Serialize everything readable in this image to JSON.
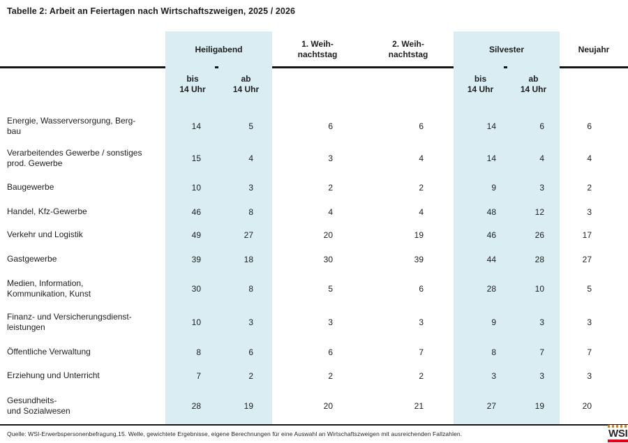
{
  "title": "Tabelle 2: Arbeit an Feiertagen nach Wirtschaftszweigen, 2025 / 2026",
  "colors": {
    "highlight_band": "#d9edf2",
    "rule": "#141414",
    "text": "#1d1d1f",
    "logo_red": "#e2001a",
    "logo_orange": "#e87511"
  },
  "header": {
    "heiligabend": "Heiligabend",
    "weihnachtstag1": "1. Weih-\nnachtstag",
    "weihnachtstag2": "2. Weih-\nnachtstag",
    "silvester": "Silvester",
    "neujahr": "Neujahr",
    "sub_bis": "bis\n14 Uhr",
    "sub_ab": "ab\n14 Uhr"
  },
  "rows": [
    {
      "label": "Energie, Wasserversorgung, Berg-\nbau",
      "values": [
        14,
        5,
        6,
        6,
        14,
        6,
        6
      ]
    },
    {
      "label": "Verarbeitendes Gewerbe / sonstiges\nprod. Gewerbe",
      "values": [
        15,
        4,
        3,
        4,
        14,
        4,
        4
      ]
    },
    {
      "label": "Baugewerbe",
      "values": [
        10,
        3,
        2,
        2,
        9,
        3,
        2
      ]
    },
    {
      "label": "Handel, Kfz-Gewerbe",
      "values": [
        46,
        8,
        4,
        4,
        48,
        12,
        3
      ]
    },
    {
      "label": "Verkehr und Logistik",
      "values": [
        49,
        27,
        20,
        19,
        46,
        26,
        17
      ]
    },
    {
      "label": "Gastgewerbe",
      "values": [
        39,
        18,
        30,
        39,
        44,
        28,
        27
      ]
    },
    {
      "label": "Medien, Information,\nKommunikation, Kunst",
      "values": [
        30,
        8,
        5,
        6,
        28,
        10,
        5
      ]
    },
    {
      "label": "Finanz- und Versicherungsdienst-\nleistungen",
      "values": [
        10,
        3,
        3,
        3,
        9,
        3,
        3
      ]
    },
    {
      "label": "Öffentliche Verwaltung",
      "values": [
        8,
        6,
        6,
        7,
        8,
        7,
        7
      ]
    },
    {
      "label": "Erziehung und Unterricht",
      "values": [
        7,
        2,
        2,
        2,
        3,
        3,
        3
      ]
    },
    {
      "label": "Gesundheits-\nund Sozialwesen",
      "values": [
        28,
        19,
        20,
        21,
        27,
        19,
        20
      ]
    }
  ],
  "footer": {
    "source": "Quelle: WSI-Erwerbspersonenbefragung,15. Welle, gewichtete Ergebnisse, eigene Berechnungen für eine Auswahl an Wirtschaftszweigen mit ausreichenden Fallzahlen.",
    "logo_text": "WSI"
  }
}
